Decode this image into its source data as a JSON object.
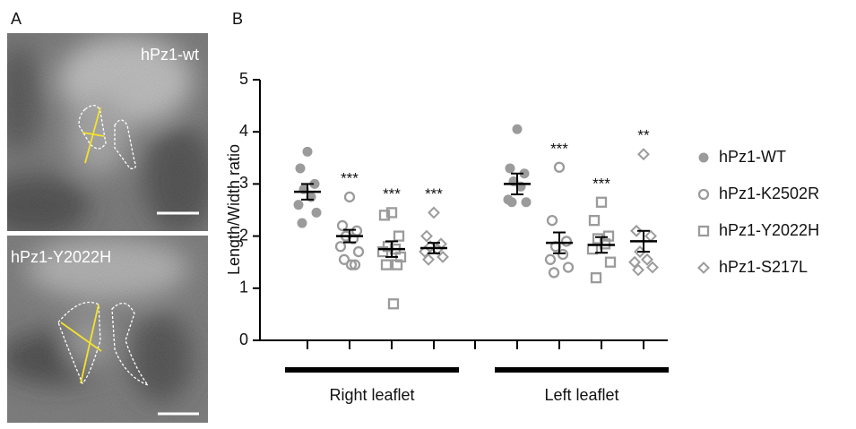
{
  "panel_labels": [
    "A",
    "B"
  ],
  "image_labels": [
    "hPz1-wt",
    "hPz1-Y2022H"
  ],
  "chart_data": {
    "type": "dotplot",
    "y_label": "Length/Width ratio",
    "ylim": [
      0,
      5
    ],
    "yticks": [
      0,
      1,
      2,
      3,
      4,
      5
    ],
    "groups": [
      "Right leaflet",
      "Left leaflet"
    ],
    "series": [
      {
        "name": "hPz1-WT",
        "color": "#9b9b9b",
        "marker": "filled-circle",
        "groups": [
          {
            "values": [
              3.62,
              3.3,
              3.0,
              2.9,
              2.75,
              2.6,
              2.45,
              2.25
            ],
            "mean": 2.85,
            "sem": 0.15
          },
          {
            "values": [
              4.05,
              3.3,
              3.2,
              3.05,
              2.95,
              2.7,
              2.65,
              2.65
            ],
            "mean": 3.0,
            "sem": 0.2
          }
        ]
      },
      {
        "name": "hPz1-K2502R",
        "color": "#9b9b9b",
        "marker": "open-circle",
        "groups": [
          {
            "values": [
              2.75,
              2.2,
              2.1,
              2.0,
              1.95,
              1.8,
              1.7,
              1.55,
              1.45,
              1.45
            ],
            "mean": 2.0,
            "sem": 0.12,
            "annotation": "***"
          },
          {
            "values": [
              3.32,
              2.3,
              1.9,
              1.8,
              1.65,
              1.55,
              1.4,
              1.3
            ],
            "mean": 1.87,
            "sem": 0.2,
            "annotation": "***"
          }
        ]
      },
      {
        "name": "hPz1-Y2022H",
        "color": "#9b9b9b",
        "marker": "open-square",
        "groups": [
          {
            "values": [
              2.45,
              2.4,
              2.0,
              1.8,
              1.75,
              1.7,
              1.6,
              1.45,
              1.45,
              0.7
            ],
            "mean": 1.75,
            "sem": 0.15,
            "annotation": "***"
          },
          {
            "values": [
              2.65,
              2.3,
              2.0,
              1.95,
              1.85,
              1.75,
              1.5,
              1.2
            ],
            "mean": 1.83,
            "sem": 0.15,
            "annotation": "***"
          }
        ]
      },
      {
        "name": "hPz1-S217L",
        "color": "#9b9b9b",
        "marker": "open-diamond",
        "groups": [
          {
            "values": [
              2.45,
              2.0,
              1.85,
              1.8,
              1.75,
              1.7,
              1.6,
              1.55
            ],
            "mean": 1.77,
            "sem": 0.1,
            "annotation": "***"
          },
          {
            "values": [
              3.57,
              2.1,
              2.0,
              1.7,
              1.55,
              1.5,
              1.4,
              1.35
            ],
            "mean": 1.9,
            "sem": 0.2,
            "annotation": "**"
          }
        ]
      }
    ]
  }
}
